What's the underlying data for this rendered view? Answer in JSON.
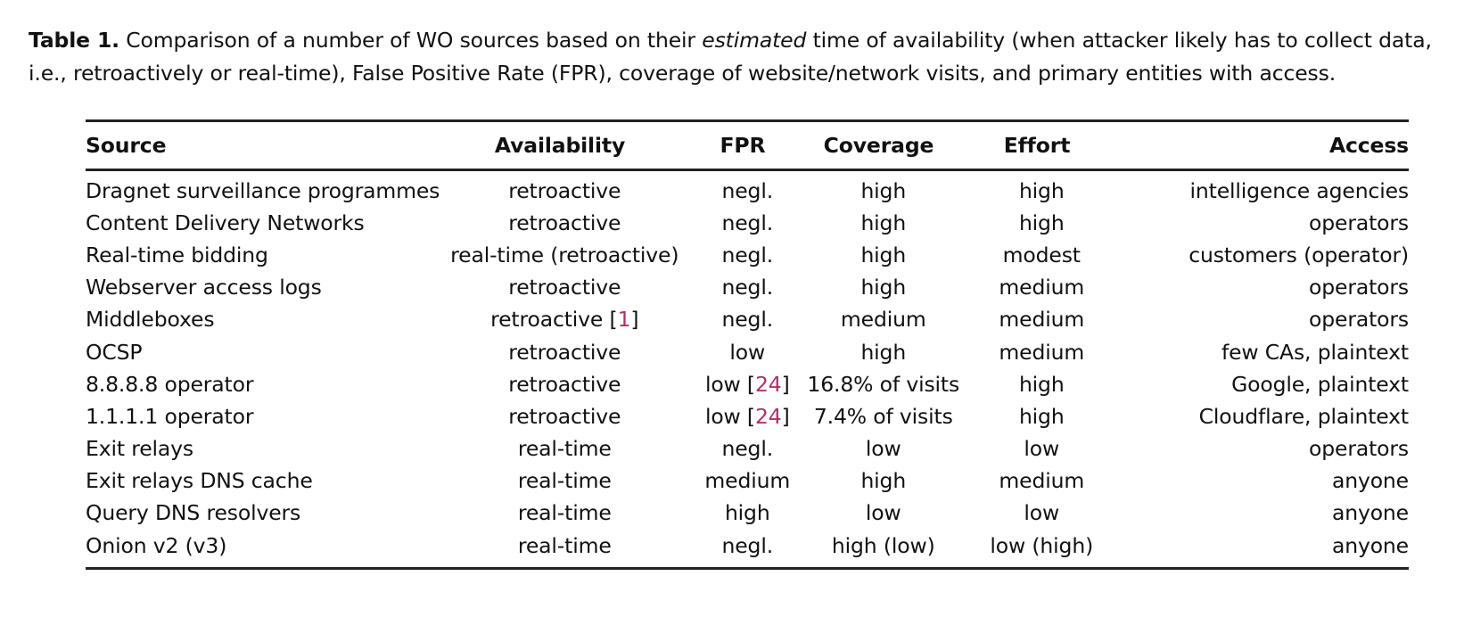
{
  "caption": {
    "label": "Table 1.",
    "text_before": " Comparison of a number of WO sources based on their ",
    "emphasis": "estimated",
    "text_after": " time of availability (when attacker likely has to collect data, i.e., retroactively or real-time), False Positive Rate (FPR), coverage of website/network visits, and primary entities with access."
  },
  "table": {
    "headers": [
      "Source",
      "Availability",
      "FPR",
      "Coverage",
      "Effort",
      "Access"
    ],
    "rows": [
      [
        "Dragnet surveillance programmes",
        "retroactive",
        "negl.",
        "high",
        "high",
        "intelligence agencies"
      ],
      [
        "Content Delivery Networks",
        "retroactive",
        "negl.",
        "high",
        "high",
        "operators"
      ],
      [
        "Real-time bidding",
        "real-time (retroactive)",
        "negl.",
        "high",
        "modest",
        "customers (operator)"
      ],
      [
        "Webserver access logs",
        "retroactive",
        "negl.",
        "high",
        "medium",
        "operators"
      ],
      [
        "Middleboxes",
        "retroactive [1]",
        "negl.",
        "medium",
        "medium",
        "operators"
      ],
      [
        "OCSP",
        "retroactive",
        "low",
        "high",
        "medium",
        "few CAs, plaintext"
      ],
      [
        "8.8.8.8 operator",
        "retroactive",
        "low [24]",
        "16.8% of visits",
        "high",
        "Google, plaintext"
      ],
      [
        "1.1.1.1 operator",
        "retroactive",
        "low [24]",
        "7.4% of visits",
        "high",
        "Cloudflare, plaintext"
      ],
      [
        "Exit relays",
        "real-time",
        "negl.",
        "low",
        "low",
        "operators"
      ],
      [
        "Exit relays DNS cache",
        "real-time",
        "medium",
        "high",
        "medium",
        "anyone"
      ],
      [
        "Query DNS resolvers",
        "real-time",
        "high",
        "low",
        "low",
        "anyone"
      ],
      [
        "Onion v2 (v3)",
        "real-time",
        "negl.",
        "high (low)",
        "low (high)",
        "anyone"
      ]
    ]
  },
  "colors": {
    "citation": "#b0306a",
    "text": "#111111",
    "rule": "#222222"
  }
}
